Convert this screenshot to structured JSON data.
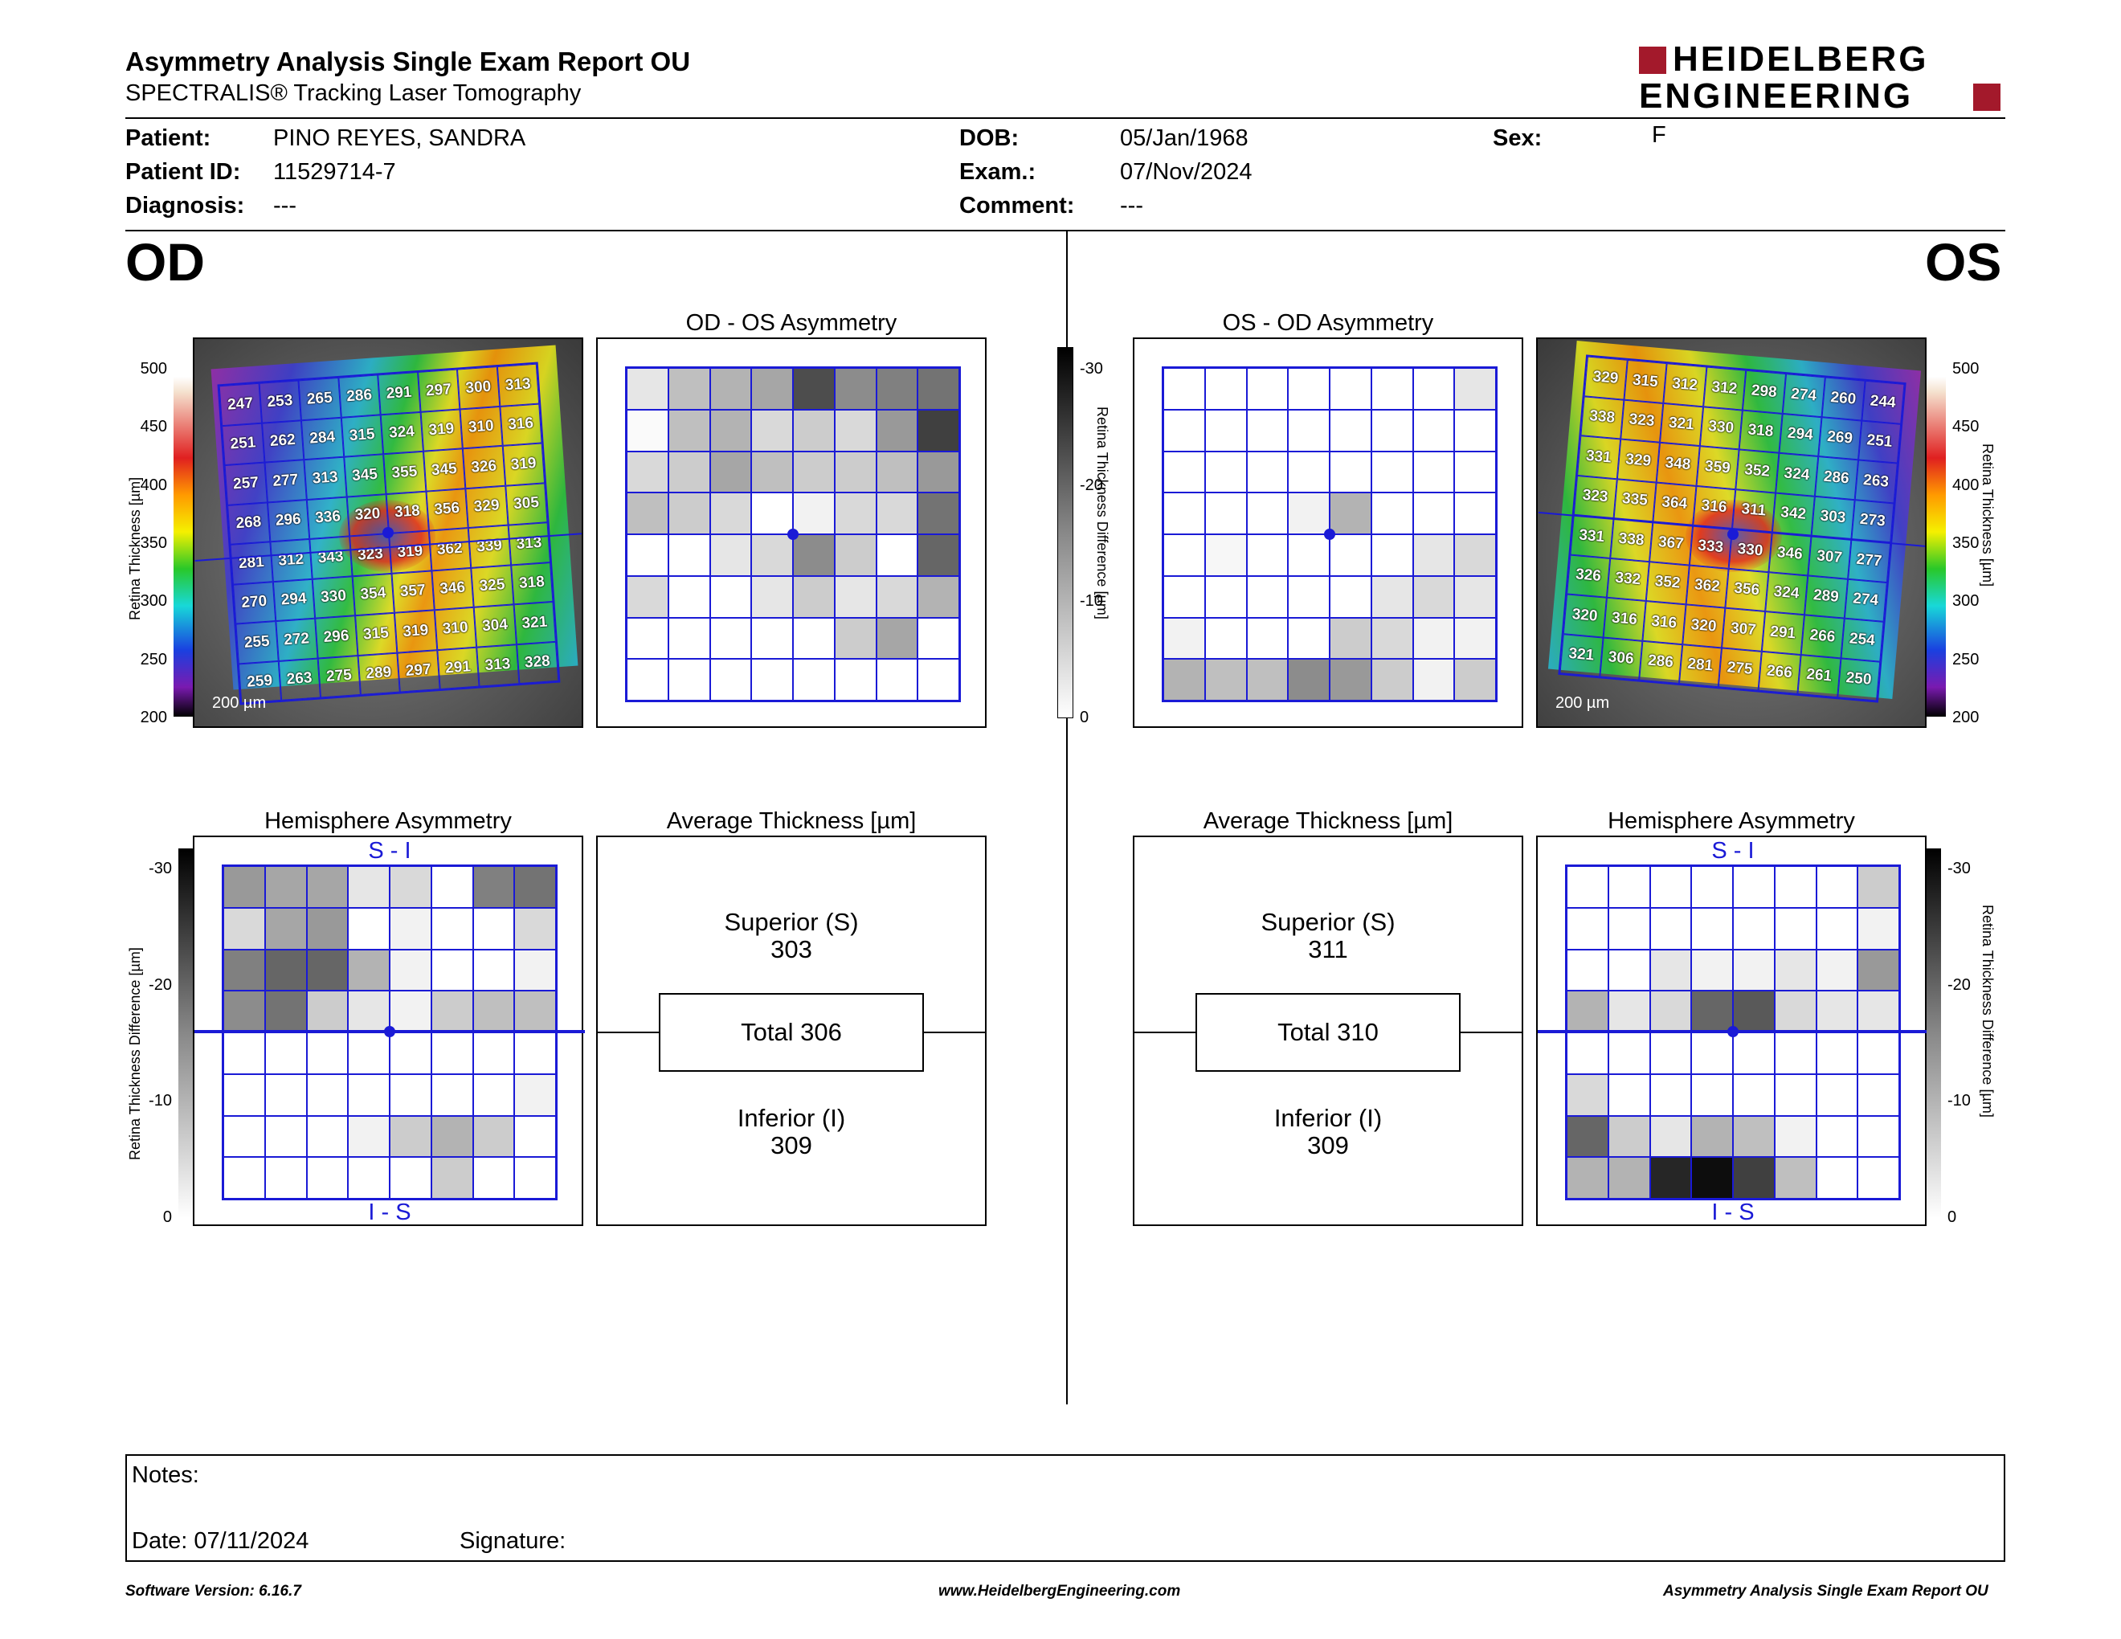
{
  "header": {
    "title": "Asymmetry Analysis Single Exam Report OU",
    "subtitle": "SPECTRALIS® Tracking Laser Tomography",
    "logo_line1": "HEIDELBERG",
    "logo_line2": "ENGINEERING"
  },
  "patient": {
    "patient_label": "Patient:",
    "patient_value": "PINO REYES, SANDRA",
    "id_label": "Patient ID:",
    "id_value": "11529714-7",
    "diagnosis_label": "Diagnosis:",
    "diagnosis_value": "---",
    "dob_label": "DOB:",
    "dob_value": "05/Jan/1968",
    "exam_label": "Exam.:",
    "exam_value": "07/Nov/2024",
    "comment_label": "Comment:",
    "comment_value": "---",
    "sex_label": "Sex:",
    "sex_value": "F"
  },
  "od": {
    "label": "OD",
    "asym_title": "OD - OS Asymmetry",
    "hemi_title": "Hemisphere Asymmetry",
    "avg_title": "Average Thickness [µm]",
    "superior_label": "Superior (S)",
    "superior_value": "303",
    "total_label": "Total 306",
    "inferior_label": "Inferior (I)",
    "inferior_value": "309",
    "hemi_top": "S - I",
    "hemi_bottom": "I - S",
    "scale_bar": "200 µm",
    "thickness": [
      [
        "247",
        "253",
        "265",
        "286",
        "291",
        "297",
        "300",
        "313"
      ],
      [
        "251",
        "262",
        "284",
        "315",
        "324",
        "319",
        "310",
        "316"
      ],
      [
        "257",
        "277",
        "313",
        "345",
        "355",
        "345",
        "326",
        "319"
      ],
      [
        "268",
        "296",
        "336",
        "320",
        "318",
        "356",
        "329",
        "305"
      ],
      [
        "281",
        "312",
        "343",
        "323",
        "319",
        "362",
        "339",
        "313"
      ],
      [
        "270",
        "294",
        "330",
        "354",
        "357",
        "346",
        "325",
        "318"
      ],
      [
        "255",
        "272",
        "296",
        "315",
        "319",
        "310",
        "304",
        "321"
      ],
      [
        "259",
        "263",
        "275",
        "289",
        "297",
        "291",
        "313",
        "328"
      ]
    ],
    "asym_shades": [
      [
        0.1,
        0.25,
        0.3,
        0.35,
        0.7,
        0.45,
        0.5,
        0.55
      ],
      [
        0.02,
        0.25,
        0.3,
        0.15,
        0.2,
        0.15,
        0.4,
        0.75
      ],
      [
        0.15,
        0.2,
        0.35,
        0.25,
        0.2,
        0.2,
        0.25,
        0.4
      ],
      [
        0.25,
        0.2,
        0.15,
        0.0,
        0.05,
        0.15,
        0.15,
        0.55
      ],
      [
        0.0,
        0.0,
        0.1,
        0.15,
        0.45,
        0.2,
        0.0,
        0.6
      ],
      [
        0.15,
        0.0,
        0.0,
        0.1,
        0.2,
        0.1,
        0.15,
        0.3
      ],
      [
        0.0,
        0.0,
        0.0,
        0.0,
        0.0,
        0.2,
        0.35,
        0.0
      ],
      [
        0.0,
        0.0,
        0.0,
        0.0,
        0.0,
        0.0,
        0.0,
        0.0
      ]
    ],
    "hemi_shades": [
      [
        0.4,
        0.35,
        0.35,
        0.1,
        0.15,
        0.0,
        0.5,
        0.55
      ],
      [
        0.15,
        0.35,
        0.4,
        0.0,
        0.05,
        0.0,
        0.0,
        0.15
      ],
      [
        0.5,
        0.6,
        0.6,
        0.3,
        0.05,
        0.0,
        0.0,
        0.05
      ],
      [
        0.45,
        0.55,
        0.2,
        0.1,
        0.05,
        0.2,
        0.25,
        0.25
      ],
      [
        0,
        0,
        0,
        0,
        0,
        0,
        0,
        0
      ],
      [
        0,
        0,
        0,
        0,
        0,
        0,
        0,
        0.05
      ],
      [
        0,
        0,
        0,
        0.05,
        0.2,
        0.3,
        0.2,
        0
      ],
      [
        0,
        0,
        0,
        0,
        0,
        0.2,
        0,
        0
      ]
    ]
  },
  "os": {
    "label": "OS",
    "asym_title": "OS - OD Asymmetry",
    "hemi_title": "Hemisphere Asymmetry",
    "avg_title": "Average Thickness [µm]",
    "superior_label": "Superior (S)",
    "superior_value": "311",
    "total_label": "Total 310",
    "inferior_label": "Inferior (I)",
    "inferior_value": "309",
    "hemi_top": "S - I",
    "hemi_bottom": "I - S",
    "scale_bar": "200 µm",
    "thickness": [
      [
        "329",
        "315",
        "312",
        "312",
        "298",
        "274",
        "260",
        "244"
      ],
      [
        "338",
        "323",
        "321",
        "330",
        "318",
        "294",
        "269",
        "251"
      ],
      [
        "331",
        "329",
        "348",
        "359",
        "352",
        "324",
        "286",
        "263"
      ],
      [
        "323",
        "335",
        "364",
        "316",
        "311",
        "342",
        "303",
        "273"
      ],
      [
        "331",
        "338",
        "367",
        "333",
        "330",
        "346",
        "307",
        "277"
      ],
      [
        "326",
        "332",
        "352",
        "362",
        "356",
        "324",
        "289",
        "274"
      ],
      [
        "320",
        "316",
        "316",
        "320",
        "307",
        "291",
        "266",
        "254"
      ],
      [
        "321",
        "306",
        "286",
        "281",
        "275",
        "266",
        "261",
        "250"
      ]
    ],
    "asym_shades": [
      [
        0,
        0,
        0,
        0,
        0,
        0,
        0,
        0.1
      ],
      [
        0,
        0,
        0,
        0,
        0,
        0,
        0,
        0
      ],
      [
        0,
        0,
        0,
        0,
        0,
        0,
        0,
        0
      ],
      [
        0,
        0,
        0,
        0.05,
        0.3,
        0,
        0,
        0
      ],
      [
        0,
        0.03,
        0,
        0,
        0,
        0,
        0.1,
        0.15
      ],
      [
        0,
        0,
        0,
        0,
        0,
        0.1,
        0.15,
        0.1
      ],
      [
        0.05,
        0,
        0,
        0,
        0.2,
        0.15,
        0.05,
        0.05
      ],
      [
        0.3,
        0.25,
        0.25,
        0.45,
        0.4,
        0.2,
        0.05,
        0.2
      ]
    ],
    "hemi_shades": [
      [
        0,
        0,
        0,
        0,
        0,
        0,
        0,
        0.2
      ],
      [
        0,
        0,
        0,
        0,
        0,
        0,
        0,
        0.05
      ],
      [
        0,
        0,
        0.1,
        0.05,
        0.05,
        0.1,
        0.05,
        0.4
      ],
      [
        0.3,
        0.1,
        0.15,
        0.6,
        0.65,
        0.15,
        0.1,
        0.1
      ],
      [
        0,
        0,
        0,
        0,
        0,
        0,
        0,
        0
      ],
      [
        0.15,
        0,
        0,
        0,
        0,
        0,
        0,
        0
      ],
      [
        0.6,
        0.2,
        0.1,
        0.3,
        0.25,
        0.05,
        0,
        0
      ],
      [
        0.3,
        0.3,
        0.85,
        0.95,
        0.75,
        0.25,
        0,
        0
      ]
    ]
  },
  "scales": {
    "thickness_ticks": [
      "500",
      "450",
      "400",
      "350",
      "300",
      "250",
      "200"
    ],
    "thickness_label": "Retina Thickness [µm]",
    "diff_ticks": [
      "-30",
      "-20",
      "-10",
      "0"
    ],
    "diff_label": "Retina Thickness Difference [µm]"
  },
  "notes": {
    "notes_label": "Notes:",
    "date_label": "Date: 07/11/2024",
    "signature_label": "Signature:"
  },
  "footer": {
    "version": "Software Version: 6.16.7",
    "url": "www.HeidelbergEngineering.com",
    "report": "Asymmetry Analysis Single Exam Report OU"
  },
  "colors": {
    "grid_blue": "#1a1ad6",
    "logo_red": "#a3192b"
  }
}
